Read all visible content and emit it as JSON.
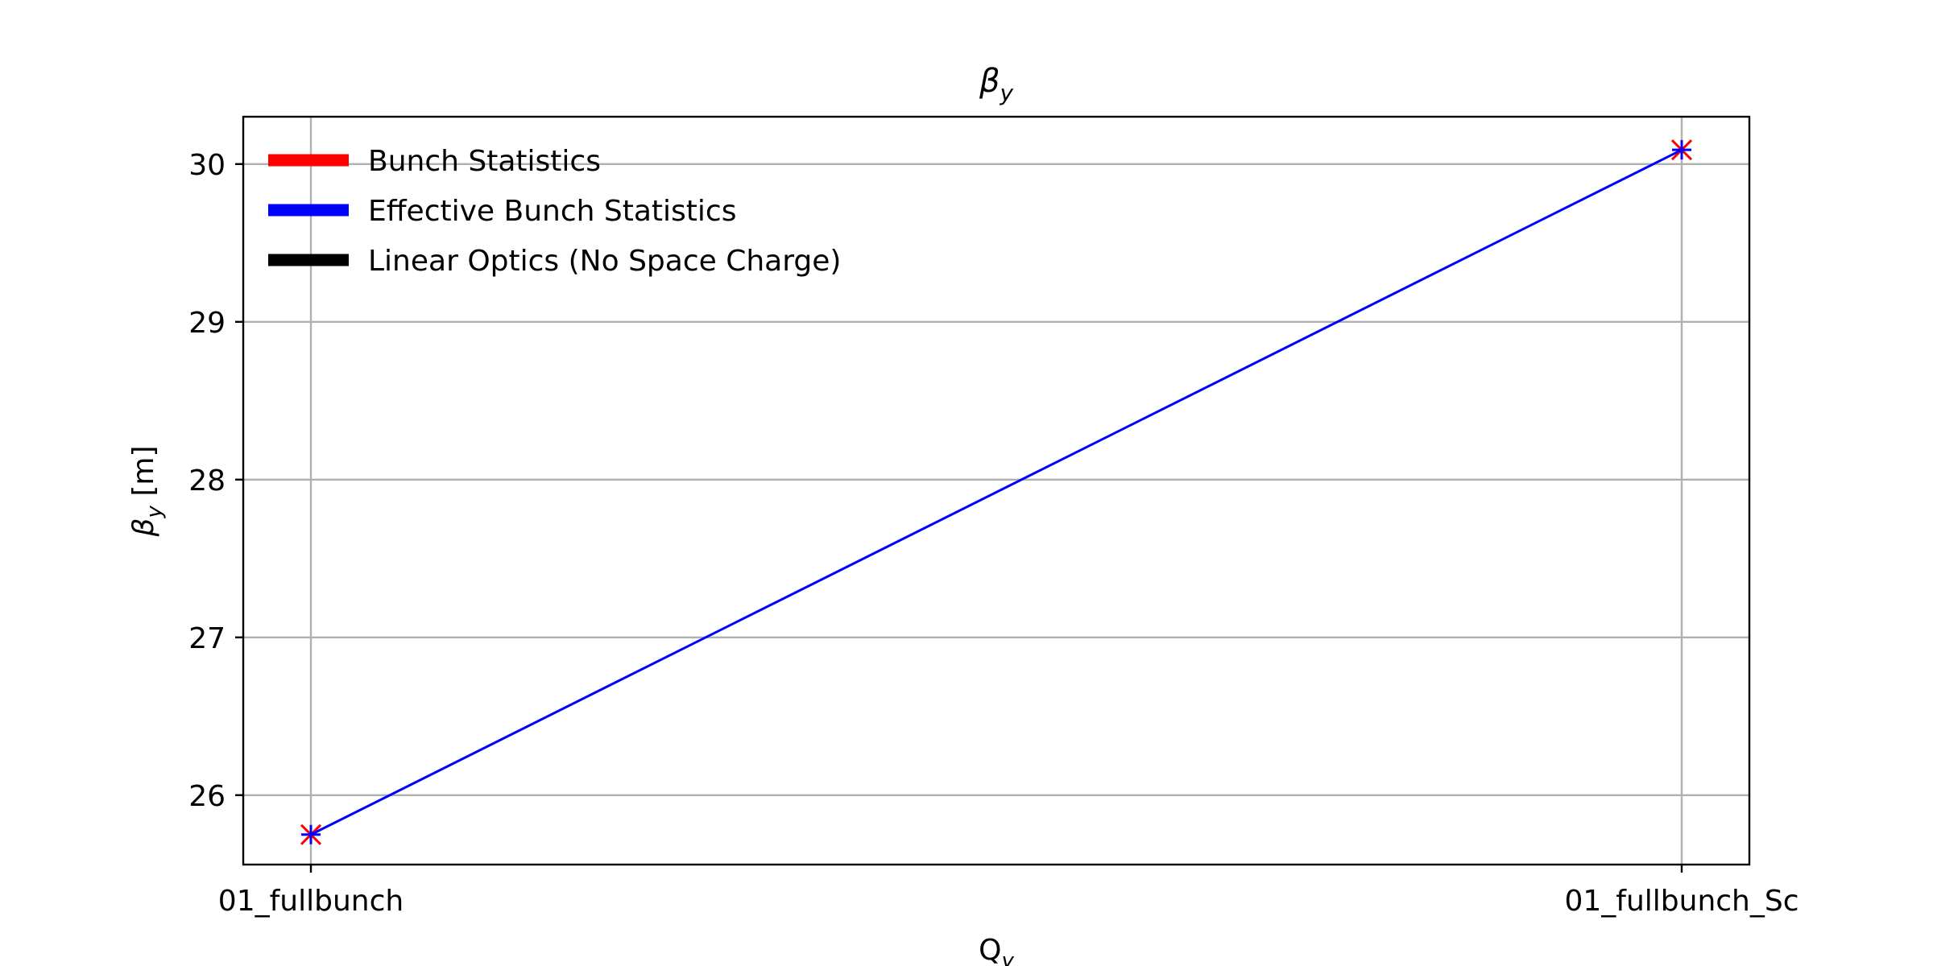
{
  "chart_data": {
    "type": "line",
    "title": "β",
    "title_sub": "y",
    "xlabel": "Q",
    "xlabel_sub": "y",
    "ylabel": "β",
    "ylabel_sub": "y",
    "ylabel_unit": " [m]",
    "categories": [
      "01_fullbunch",
      "01_fullbunch_Sc"
    ],
    "yticks": [
      "26",
      "27",
      "28",
      "29",
      "30"
    ],
    "ylim": [
      25.56,
      30.3
    ],
    "grid": true,
    "legend_position": "upper-left",
    "legend": [
      {
        "label": "Bunch Statistics",
        "color": "#ff0000"
      },
      {
        "label": "Effective Bunch Statistics",
        "color": "#0000ff"
      },
      {
        "label": "Linear Optics (No Space Charge)",
        "color": "#000000"
      }
    ],
    "series": [
      {
        "name": "Bunch Statistics",
        "color": "#ff0000",
        "marker": "x",
        "values": [
          25.75,
          30.09
        ]
      },
      {
        "name": "Effective Bunch Statistics",
        "color": "#0000ff",
        "marker": "+",
        "line": true,
        "values": [
          25.75,
          30.09
        ]
      }
    ]
  }
}
